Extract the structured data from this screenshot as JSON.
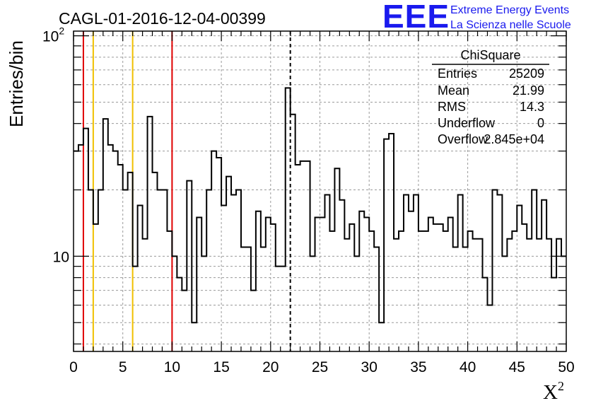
{
  "chart_data": {
    "type": "histogram",
    "title": "CAGL-01-2016-12-04-00399",
    "xlabel": "X",
    "xlabel_superscript": "2",
    "ylabel": "Entries/bin",
    "xlim": [
      0,
      50
    ],
    "ylim": [
      3.7,
      105
    ],
    "y_log_scale": true,
    "grid": true,
    "bin_width": 0.5,
    "x_ticks": [
      "0",
      "5",
      "10",
      "15",
      "20",
      "25",
      "30",
      "35",
      "40",
      "45",
      "50"
    ],
    "y_ticks": [
      {
        "value": 10,
        "label": "10",
        "sup": ""
      },
      {
        "value": 100,
        "label": "10",
        "sup": "2"
      }
    ],
    "values": [
      30,
      32,
      38,
      20,
      14,
      20,
      42,
      32,
      30,
      26,
      20,
      24,
      9,
      17,
      12,
      43,
      24,
      20,
      20,
      13,
      10,
      8,
      7,
      22,
      5,
      15,
      10,
      20,
      30,
      28,
      17,
      23,
      19,
      20,
      11,
      11,
      7,
      16,
      11,
      15,
      14,
      9,
      9,
      58,
      44,
      26,
      27,
      27,
      10,
      15,
      15,
      19,
      13,
      25,
      18,
      12,
      14,
      10,
      16,
      15,
      13,
      11,
      5,
      34,
      36,
      12,
      13,
      19,
      16,
      19,
      13,
      13,
      15,
      14,
      14,
      13,
      15,
      11,
      19,
      11,
      13,
      12,
      12,
      8,
      6,
      20,
      19,
      10,
      12,
      13,
      17,
      14,
      12,
      20,
      12,
      18,
      12,
      8,
      12,
      10
    ],
    "vertical_lines": [
      {
        "x": 1,
        "color": "#e00000",
        "style": "solid"
      },
      {
        "x": 2,
        "color": "#f0c000",
        "style": "solid"
      },
      {
        "x": 6,
        "color": "#f0c000",
        "style": "solid"
      },
      {
        "x": 10,
        "color": "#e00000",
        "style": "solid"
      },
      {
        "x": 22,
        "color": "#000000",
        "style": "dashed"
      }
    ]
  },
  "stats_box": {
    "title": "ChiSquare",
    "rows": [
      {
        "label": "Entries",
        "value": "25209"
      },
      {
        "label": "Mean",
        "value": "21.99"
      },
      {
        "label": "RMS",
        "value": "14.3"
      },
      {
        "label": "Underflow",
        "value": "0"
      },
      {
        "label": "Overflow",
        "value": "2.845e+04"
      }
    ]
  },
  "logo": {
    "letters": "EEE",
    "line1": "Extreme Energy Events",
    "line2": "La Scienza nelle Scuole",
    "color": "#1a1aee"
  },
  "colors": {
    "histogram": "#000000",
    "grid": "#9a9a9a",
    "red_line": "#e00000",
    "yellow_line": "#f0c000"
  }
}
